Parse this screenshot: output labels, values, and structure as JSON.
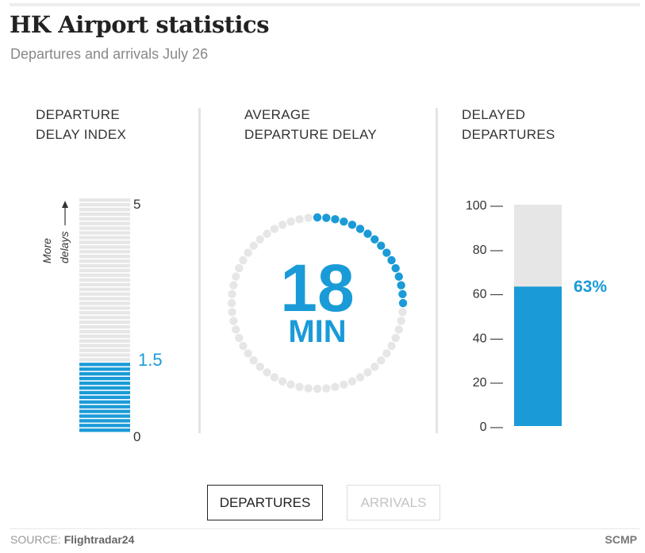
{
  "header": {
    "title": "HK Airport statistics",
    "subtitle": "Departures and arrivals July 26"
  },
  "panels": {
    "index": {
      "label_line1": "DEPARTURE",
      "label_line2": "DELAY INDEX",
      "axis_note_line1": "More",
      "axis_note_line2": "delays"
    },
    "average": {
      "label_line1": "AVERAGE",
      "label_line2": "DEPARTURE DELAY",
      "unit": "MIN"
    },
    "delayed": {
      "label_line1": "DELAYED",
      "label_line2": "DEPARTURES"
    }
  },
  "toggle": {
    "departures_label": "DEPARTURES",
    "arrivals_label": "ARRIVALS",
    "active": "DEPARTURES"
  },
  "footer": {
    "source_prefix": "SOURCE: ",
    "source_name": "Flightradar24",
    "credit": "SCMP"
  },
  "colors": {
    "accent": "#1a9bd7",
    "inactive": "#e6e6e6"
  },
  "chart_data": [
    {
      "type": "bar",
      "title": "DEPARTURE DELAY INDEX",
      "values": [
        1.5
      ],
      "value_label": "1.5",
      "ylim": [
        0,
        5
      ],
      "tick_labels": [
        "0",
        "5"
      ],
      "annotation": "More delays"
    },
    {
      "type": "pie",
      "title": "AVERAGE DEPARTURE DELAY",
      "value": 18,
      "value_label": "18",
      "unit": "MIN",
      "dial_fraction": 0.27
    },
    {
      "type": "bar",
      "title": "DELAYED DEPARTURES",
      "values": [
        63
      ],
      "value_label": "63%",
      "ylim": [
        0,
        100
      ],
      "ticks": [
        0,
        20,
        40,
        60,
        80,
        100
      ],
      "tick_labels": [
        "0 —",
        "20 —",
        "40 —",
        "60 —",
        "80 —",
        "100 —"
      ]
    }
  ]
}
